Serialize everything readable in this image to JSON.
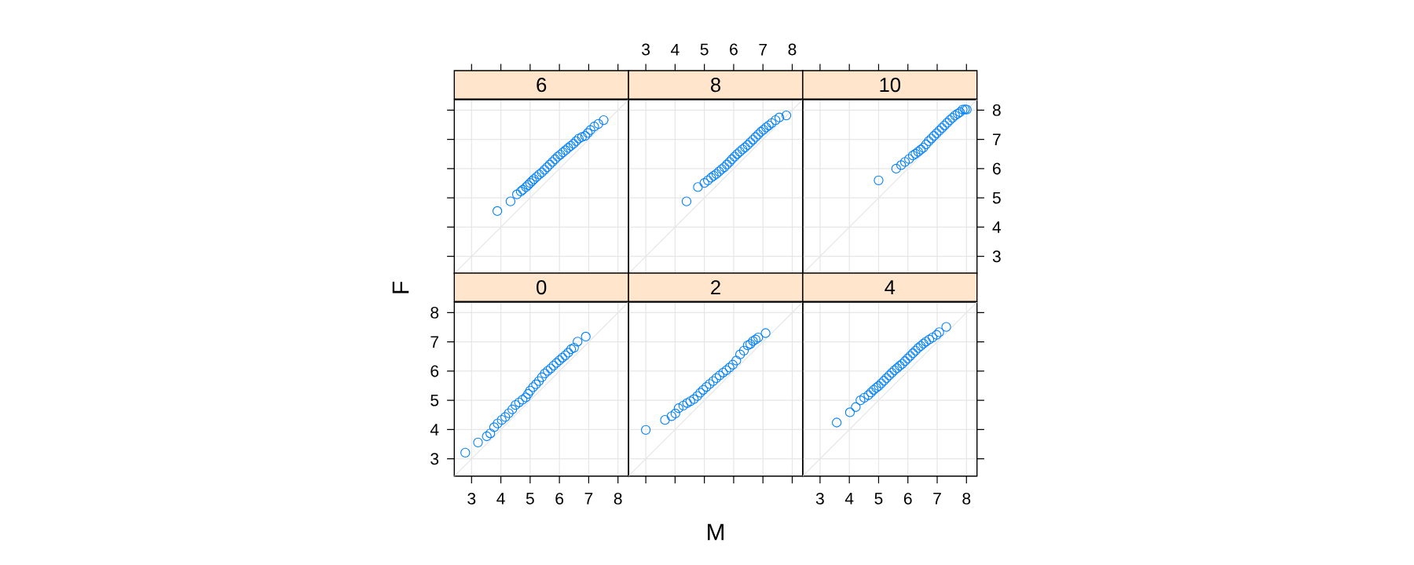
{
  "chart_data": [
    {
      "type": "scatter",
      "title": "6",
      "xlim": [
        2.41,
        8.36
      ],
      "ylim": [
        2.41,
        8.36
      ],
      "xticks": [
        3,
        4,
        5,
        6,
        7,
        8
      ],
      "yticks": [
        3,
        4,
        5,
        6,
        7,
        8
      ],
      "grid": true,
      "marker": "circle",
      "tick_labels": false,
      "series": [
        {
          "type": "line",
          "marker": "none",
          "color": "#e6e6e6",
          "x": [
            2.41,
            8.36
          ],
          "values": [
            2.41,
            8.36
          ]
        },
        {
          "color": "#0080ff",
          "x": [
            3.88,
            4.33,
            4.55,
            4.68,
            4.75,
            4.86,
            4.93,
            5.0,
            5.07,
            5.13,
            5.22,
            5.31,
            5.4,
            5.49,
            5.58,
            5.67,
            5.76,
            5.85,
            5.94,
            6.03,
            6.12,
            6.21,
            6.3,
            6.39,
            6.48,
            6.57,
            6.66,
            6.77,
            6.88,
            6.97,
            7.06,
            7.19,
            7.33,
            7.51
          ],
          "values": [
            4.55,
            4.88,
            5.12,
            5.22,
            5.28,
            5.37,
            5.44,
            5.51,
            5.58,
            5.64,
            5.72,
            5.8,
            5.87,
            5.96,
            6.05,
            6.14,
            6.23,
            6.32,
            6.41,
            6.48,
            6.56,
            6.63,
            6.71,
            6.78,
            6.85,
            6.94,
            7.03,
            7.08,
            7.12,
            7.22,
            7.32,
            7.44,
            7.53,
            7.66
          ]
        }
      ]
    },
    {
      "type": "scatter",
      "title": "8",
      "xlim": [
        2.41,
        8.36
      ],
      "ylim": [
        2.41,
        8.36
      ],
      "xticks": [
        3,
        4,
        5,
        6,
        7,
        8
      ],
      "yticks": [
        3,
        4,
        5,
        6,
        7,
        8
      ],
      "grid": true,
      "marker": "circle",
      "tick_labels": "x",
      "series": [
        {
          "type": "line",
          "marker": "none",
          "color": "#e6e6e6",
          "x": [
            2.41,
            8.36
          ],
          "values": [
            2.41,
            8.36
          ]
        },
        {
          "color": "#0080ff",
          "x": [
            4.39,
            4.78,
            5.0,
            5.12,
            5.23,
            5.32,
            5.41,
            5.5,
            5.59,
            5.68,
            5.77,
            5.86,
            5.94,
            6.03,
            6.12,
            6.21,
            6.3,
            6.39,
            6.48,
            6.57,
            6.66,
            6.75,
            6.84,
            6.93,
            7.02,
            7.11,
            7.2,
            7.3,
            7.43,
            7.56,
            7.8
          ],
          "values": [
            4.88,
            5.37,
            5.51,
            5.6,
            5.69,
            5.76,
            5.82,
            5.9,
            5.98,
            6.05,
            6.14,
            6.23,
            6.32,
            6.41,
            6.5,
            6.58,
            6.66,
            6.73,
            6.81,
            6.9,
            6.99,
            7.08,
            7.17,
            7.26,
            7.33,
            7.41,
            7.48,
            7.56,
            7.66,
            7.75,
            7.82
          ]
        }
      ]
    },
    {
      "type": "scatter",
      "title": "10",
      "xlim": [
        2.41,
        8.36
      ],
      "ylim": [
        2.41,
        8.36
      ],
      "xticks": [
        3,
        4,
        5,
        6,
        7,
        8
      ],
      "yticks": [
        3,
        4,
        5,
        6,
        7,
        8
      ],
      "grid": true,
      "marker": "circle",
      "tick_labels": "y",
      "series": [
        {
          "type": "line",
          "marker": "none",
          "color": "#e6e6e6",
          "x": [
            2.41,
            8.36
          ],
          "values": [
            2.41,
            8.36
          ]
        },
        {
          "color": "#0080ff",
          "x": [
            5.0,
            5.6,
            5.77,
            5.9,
            6.04,
            6.17,
            6.26,
            6.35,
            6.44,
            6.53,
            6.62,
            6.71,
            6.8,
            6.89,
            6.98,
            7.07,
            7.16,
            7.25,
            7.34,
            7.43,
            7.52,
            7.61,
            7.7,
            7.78,
            7.87,
            7.95,
            8.01
          ],
          "values": [
            5.6,
            6.0,
            6.12,
            6.23,
            6.33,
            6.45,
            6.51,
            6.58,
            6.65,
            6.72,
            6.83,
            6.94,
            7.03,
            7.12,
            7.21,
            7.3,
            7.39,
            7.48,
            7.57,
            7.66,
            7.74,
            7.82,
            7.88,
            7.93,
            8.02,
            8.03,
            8.02
          ]
        }
      ]
    },
    {
      "type": "scatter",
      "title": "0",
      "ylabel": "F",
      "xlim": [
        2.41,
        8.36
      ],
      "ylim": [
        2.41,
        8.36
      ],
      "xticks": [
        3,
        4,
        5,
        6,
        7,
        8
      ],
      "yticks": [
        3,
        4,
        5,
        6,
        7,
        8
      ],
      "grid": true,
      "marker": "circle",
      "series": [
        {
          "type": "line",
          "marker": "none",
          "color": "#e6e6e6",
          "x": [
            2.41,
            8.36
          ],
          "values": [
            2.41,
            8.36
          ]
        },
        {
          "color": "#0080ff",
          "x": [
            2.785,
            3.22,
            3.52,
            3.64,
            3.77,
            3.89,
            4.03,
            4.15,
            4.27,
            4.39,
            4.5,
            4.62,
            4.74,
            4.85,
            4.93,
            5.0,
            5.1,
            5.2,
            5.3,
            5.4,
            5.5,
            5.6,
            5.7,
            5.8,
            5.9,
            6.0,
            6.1,
            6.2,
            6.3,
            6.4,
            6.5,
            6.62,
            6.9
          ],
          "values": [
            3.21,
            3.56,
            3.77,
            3.87,
            4.08,
            4.21,
            4.33,
            4.43,
            4.56,
            4.69,
            4.84,
            4.93,
            5.02,
            5.1,
            5.22,
            5.33,
            5.45,
            5.55,
            5.66,
            5.79,
            5.92,
            6.01,
            6.09,
            6.19,
            6.28,
            6.37,
            6.46,
            6.54,
            6.63,
            6.75,
            6.8,
            7.01,
            7.18
          ]
        }
      ]
    },
    {
      "type": "scatter",
      "title": "2",
      "xlabel": "M",
      "xlim": [
        2.41,
        8.36
      ],
      "ylim": [
        2.41,
        8.36
      ],
      "xticks": [
        3,
        4,
        5,
        6,
        7,
        8
      ],
      "yticks": [
        3,
        4,
        5,
        6,
        7,
        8
      ],
      "grid": true,
      "marker": "circle",
      "tick_labels": false,
      "series": [
        {
          "type": "line",
          "marker": "none",
          "color": "#e6e6e6",
          "x": [
            2.41,
            8.36
          ],
          "values": [
            2.41,
            8.36
          ]
        },
        {
          "color": "#0080ff",
          "x": [
            3.0,
            3.655,
            3.88,
            4.01,
            4.12,
            4.28,
            4.41,
            4.52,
            4.64,
            4.76,
            4.86,
            4.96,
            5.07,
            5.18,
            5.3,
            5.41,
            5.52,
            5.64,
            5.75,
            5.86,
            5.97,
            6.09,
            6.22,
            6.35,
            6.48,
            6.57,
            6.66,
            6.75,
            6.84,
            7.09
          ],
          "values": [
            3.99,
            4.33,
            4.46,
            4.55,
            4.73,
            4.82,
            4.91,
            4.97,
            5.04,
            5.15,
            5.26,
            5.36,
            5.46,
            5.56,
            5.66,
            5.76,
            5.85,
            5.95,
            6.03,
            6.12,
            6.22,
            6.36,
            6.57,
            6.7,
            6.88,
            6.93,
            7.03,
            7.08,
            7.15,
            7.3
          ]
        }
      ]
    },
    {
      "type": "scatter",
      "title": "4",
      "xlim": [
        2.41,
        8.36
      ],
      "ylim": [
        2.41,
        8.36
      ],
      "xticks": [
        3,
        4,
        5,
        6,
        7,
        8
      ],
      "yticks": [
        3,
        4,
        5,
        6,
        7,
        8
      ],
      "grid": true,
      "marker": "circle",
      "tick_labels": "x",
      "series": [
        {
          "type": "line",
          "marker": "none",
          "color": "#e6e6e6",
          "x": [
            2.41,
            8.36
          ],
          "values": [
            2.41,
            8.36
          ]
        },
        {
          "color": "#0080ff",
          "x": [
            3.57,
            4.02,
            4.22,
            4.38,
            4.51,
            4.65,
            4.74,
            4.83,
            4.92,
            5.0,
            5.09,
            5.18,
            5.27,
            5.36,
            5.45,
            5.54,
            5.63,
            5.72,
            5.81,
            5.9,
            5.99,
            6.08,
            6.17,
            6.26,
            6.35,
            6.44,
            6.53,
            6.62,
            6.73,
            6.84,
            6.98,
            7.07,
            7.31
          ],
          "values": [
            4.24,
            4.59,
            4.77,
            5.0,
            5.09,
            5.18,
            5.27,
            5.36,
            5.43,
            5.49,
            5.58,
            5.67,
            5.76,
            5.85,
            5.94,
            6.03,
            6.1,
            6.18,
            6.25,
            6.34,
            6.43,
            6.52,
            6.61,
            6.7,
            6.79,
            6.86,
            6.94,
            7.01,
            7.08,
            7.15,
            7.24,
            7.33,
            7.51
          ]
        }
      ]
    }
  ]
}
